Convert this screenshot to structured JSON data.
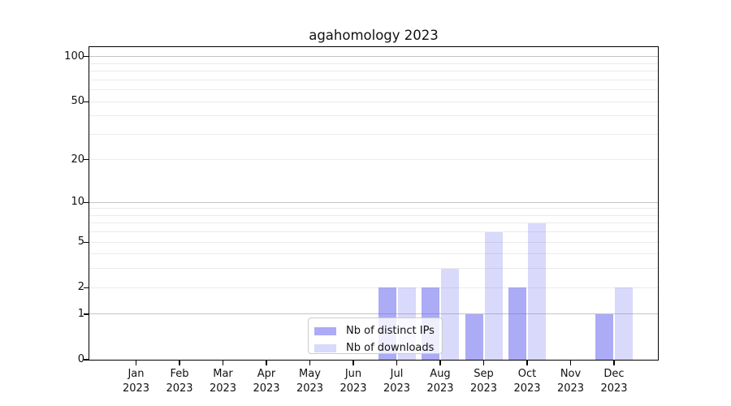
{
  "title": "agahomology 2023",
  "chart_data": {
    "type": "bar",
    "title": "agahomology 2023",
    "categories": [
      "Jan 2023",
      "Feb 2023",
      "Mar 2023",
      "Apr 2023",
      "May 2023",
      "Jun 2023",
      "Jul 2023",
      "Aug 2023",
      "Sep 2023",
      "Oct 2023",
      "Nov 2023",
      "Dec 2023"
    ],
    "x_tick_months": [
      "Jan",
      "Feb",
      "Mar",
      "Apr",
      "May",
      "Jun",
      "Jul",
      "Aug",
      "Sep",
      "Oct",
      "Nov",
      "Dec"
    ],
    "x_tick_year": "2023",
    "series": [
      {
        "name": "Nb of distinct IPs",
        "values": [
          0,
          0,
          0,
          0,
          0,
          0,
          2,
          2,
          1,
          2,
          0,
          1
        ],
        "color": "#6666ee",
        "alpha": 0.55
      },
      {
        "name": "Nb of downloads",
        "values": [
          0,
          0,
          0,
          0,
          0,
          0,
          2,
          3,
          6,
          7,
          0,
          2
        ],
        "color": "#6666ee",
        "alpha": 0.25
      }
    ],
    "yscale": "log1p",
    "ylim": [
      0,
      116
    ],
    "ytick_values": [
      100,
      50,
      20,
      10,
      5,
      2,
      1,
      0
    ],
    "ytick_labels": [
      "100",
      "50",
      "20",
      "10",
      "5",
      "2",
      "1",
      "0"
    ],
    "grid": "horizontal",
    "grid_major_values": [
      100,
      10,
      1
    ],
    "grid_minor_values": [
      90,
      80,
      70,
      60,
      50,
      40,
      30,
      20,
      9,
      8,
      7,
      6,
      5,
      4,
      3,
      2
    ],
    "legend": {
      "position": "lower center inside",
      "items": [
        "Nb of distinct IPs",
        "Nb of downloads"
      ]
    },
    "colors": {
      "bar_base": "#6666ee",
      "bar_distinct_ips_rendered": "#aaaaf5",
      "bar_downloads_rendered": "#d9d9fa",
      "major_grid": "#c4c4c4",
      "minor_grid": "#ebebeb",
      "axis": "#000000"
    }
  }
}
